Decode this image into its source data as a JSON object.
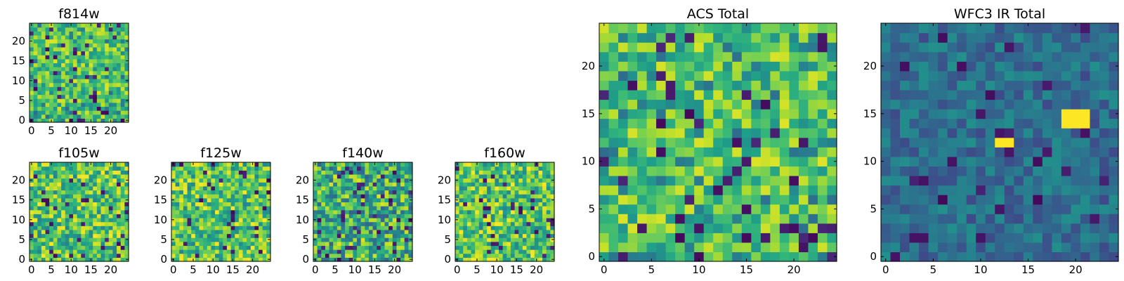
{
  "chart_data": [
    {
      "type": "heatmap",
      "title": "f814w",
      "grid_shape": [
        25,
        25
      ],
      "xlim": [
        0,
        24
      ],
      "ylim": [
        0,
        24
      ],
      "xticks": [
        "0",
        "5",
        "10",
        "15",
        "20"
      ],
      "yticks": [
        "0",
        "5",
        "10",
        "15",
        "20"
      ],
      "colormap": "viridis",
      "value_range": [
        0,
        1
      ],
      "seed": 814,
      "data_note": "random-looking pixel field; individual pixel values not readable"
    },
    {
      "type": "heatmap",
      "title": "f105w",
      "grid_shape": [
        25,
        25
      ],
      "xlim": [
        0,
        24
      ],
      "ylim": [
        0,
        24
      ],
      "xticks": [
        "0",
        "5",
        "10",
        "15",
        "20"
      ],
      "yticks": [
        "0",
        "5",
        "10",
        "15",
        "20"
      ],
      "colormap": "viridis",
      "value_range": [
        0,
        1
      ],
      "seed": 105,
      "data_note": "random-looking pixel field; individual pixel values not readable"
    },
    {
      "type": "heatmap",
      "title": "f125w",
      "grid_shape": [
        25,
        25
      ],
      "xlim": [
        0,
        24
      ],
      "ylim": [
        0,
        24
      ],
      "xticks": [
        "0",
        "5",
        "10",
        "15",
        "20"
      ],
      "yticks": [
        "0",
        "5",
        "10",
        "15",
        "20"
      ],
      "colormap": "viridis",
      "value_range": [
        0,
        1
      ],
      "seed": 125,
      "data_note": "random-looking pixel field; individual pixel values not readable"
    },
    {
      "type": "heatmap",
      "title": "f140w",
      "grid_shape": [
        25,
        25
      ],
      "xlim": [
        0,
        24
      ],
      "ylim": [
        0,
        24
      ],
      "xticks": [
        "0",
        "5",
        "10",
        "15",
        "20"
      ],
      "yticks": [
        "0",
        "5",
        "10",
        "15",
        "20"
      ],
      "colormap": "viridis",
      "value_range": [
        0,
        1
      ],
      "seed": 140,
      "data_note": "random-looking pixel field; individual pixel values not readable"
    },
    {
      "type": "heatmap",
      "title": "f160w",
      "grid_shape": [
        25,
        25
      ],
      "xlim": [
        0,
        24
      ],
      "ylim": [
        0,
        24
      ],
      "xticks": [
        "0",
        "5",
        "10",
        "15",
        "20"
      ],
      "yticks": [
        "0",
        "5",
        "10",
        "15",
        "20"
      ],
      "colormap": "viridis",
      "value_range": [
        0,
        1
      ],
      "seed": 160,
      "data_note": "random-looking pixel field; individual pixel values not readable"
    },
    {
      "type": "heatmap",
      "title": "ACS Total",
      "grid_shape": [
        25,
        25
      ],
      "xlim": [
        0,
        24
      ],
      "ylim": [
        0,
        24
      ],
      "xticks": [
        "0",
        "5",
        "10",
        "15",
        "20"
      ],
      "yticks": [
        "0",
        "5",
        "10",
        "15",
        "20"
      ],
      "colormap": "viridis",
      "value_range": [
        0,
        1
      ],
      "seed": 999,
      "data_note": "random-looking pixel field; individual pixel values not readable"
    },
    {
      "type": "heatmap",
      "title": "WFC3 IR Total",
      "grid_shape": [
        25,
        25
      ],
      "xlim": [
        0,
        24
      ],
      "ylim": [
        0,
        24
      ],
      "xticks": [
        "0",
        "5",
        "10",
        "15",
        "20"
      ],
      "yticks": [
        "0",
        "5",
        "10",
        "15",
        "20"
      ],
      "colormap": "viridis",
      "value_range": [
        0,
        1
      ],
      "seed": 333,
      "data_note": "random-looking pixel field; individual pixel values not readable"
    }
  ]
}
